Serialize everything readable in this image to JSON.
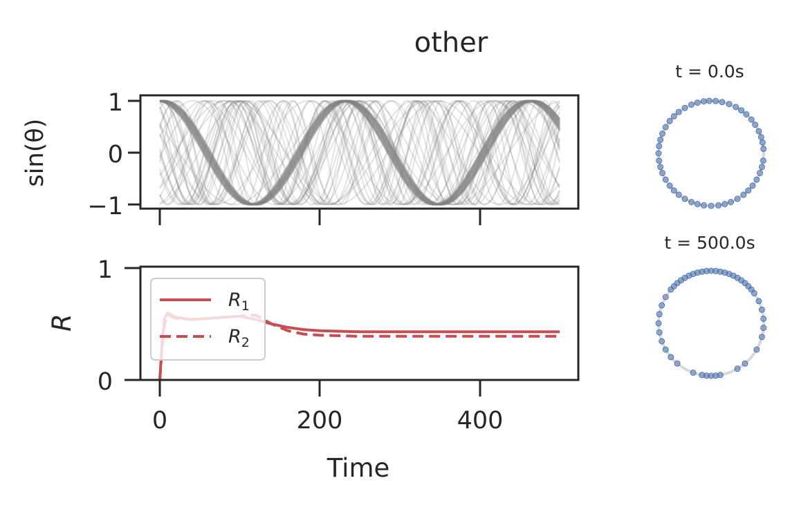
{
  "figure": {
    "title": "other",
    "colors": {
      "axis": "#262626",
      "traces": "#808080",
      "order": "#c44e52",
      "markers": "#4c72b0",
      "ring": "#d9d9d9"
    }
  },
  "chart_data": [
    {
      "type": "line",
      "panel": "phase traces",
      "ylabel": "sin(θ)",
      "xlim": [
        -25,
        525
      ],
      "ylim": [
        -1.05,
        1.05
      ],
      "y_ticks": [
        "1",
        "0",
        "−1"
      ],
      "x_ticks_shown": false,
      "series": [
        {
          "values_description": "many oscillators, sin(theta) from -1 to 1 over t 0-500",
          "x": [
            0,
            500
          ],
          "y_range": [
            -1,
            1
          ]
        }
      ]
    },
    {
      "type": "line",
      "panel": "order parameters",
      "ylabel": "R",
      "xlabel": "Time",
      "xlim": [
        -25,
        525
      ],
      "ylim": [
        0,
        1
      ],
      "x_ticks": [
        "0",
        "200",
        "400"
      ],
      "y_ticks": [
        "1",
        "0"
      ],
      "legend": {
        "position": "top-left",
        "entries": [
          "R1",
          "R2"
        ]
      },
      "series": [
        {
          "name": "R1",
          "style": "solid",
          "x": [
            0,
            3,
            6,
            10,
            20,
            40,
            60,
            80,
            100,
            120,
            140,
            160,
            180,
            200,
            250,
            300,
            400,
            500
          ],
          "y": [
            0.0,
            0.35,
            0.55,
            0.6,
            0.56,
            0.54,
            0.55,
            0.56,
            0.57,
            0.54,
            0.5,
            0.47,
            0.45,
            0.44,
            0.43,
            0.43,
            0.43,
            0.43
          ]
        },
        {
          "name": "R2",
          "style": "dashed",
          "x": [
            0,
            3,
            6,
            10,
            20,
            40,
            60,
            80,
            100,
            120,
            140,
            160,
            180,
            200,
            250,
            300,
            400,
            500
          ],
          "y": [
            0.0,
            0.3,
            0.5,
            0.58,
            0.55,
            0.54,
            0.55,
            0.56,
            0.57,
            0.58,
            0.5,
            0.44,
            0.41,
            0.4,
            0.39,
            0.39,
            0.39,
            0.39
          ]
        }
      ]
    },
    {
      "type": "scatter",
      "panel": "phase circle",
      "title": "t = 0.0s",
      "angles_deg": [
        5,
        12,
        18,
        25,
        33,
        40,
        48,
        55,
        62,
        70,
        78,
        85,
        92,
        98,
        105,
        112,
        120,
        128,
        135,
        142,
        150,
        158,
        165,
        172,
        180,
        188,
        195,
        202,
        210,
        218,
        225,
        232,
        240,
        248,
        255,
        262,
        270,
        278,
        285,
        292,
        300,
        308,
        315,
        322,
        330,
        338,
        345,
        352
      ]
    },
    {
      "type": "scatter",
      "panel": "phase circle",
      "title": "t = 500.0s",
      "angles_deg": [
        35,
        40,
        45,
        50,
        55,
        60,
        65,
        70,
        75,
        80,
        85,
        90,
        95,
        100,
        105,
        110,
        115,
        120,
        125,
        130,
        135,
        140,
        150,
        160,
        170,
        180,
        190,
        200,
        210,
        220,
        230,
        250,
        260,
        265,
        270,
        275,
        280,
        300,
        310,
        330,
        345,
        355,
        5,
        15,
        25
      ]
    }
  ]
}
